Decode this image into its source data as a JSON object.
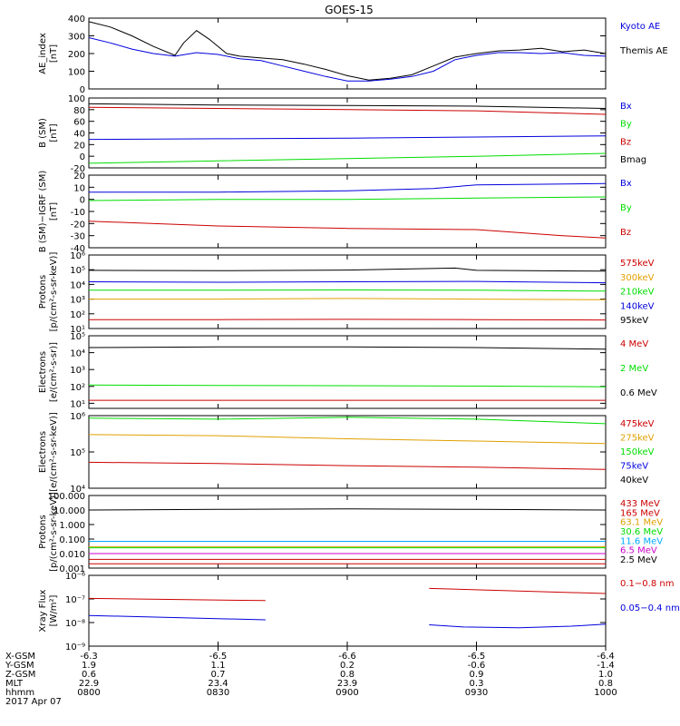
{
  "title": "GOES-15",
  "x_ticks": [
    "0800",
    "0830",
    "0900",
    "0930",
    "1000"
  ],
  "footer": {
    "row_labels": [
      "X-GSM",
      "Y-GSM",
      "Z-GSM",
      "MLT",
      "hhmm",
      "2017 Apr 07"
    ],
    "rows": [
      [
        "-6.3",
        "-6.5",
        "-6.6",
        "-6.5",
        "-6.4"
      ],
      [
        "1.9",
        "1.1",
        "0.2",
        "-0.6",
        "-1.4"
      ],
      [
        "0.6",
        "0.7",
        "0.8",
        "0.9",
        "1.0"
      ],
      [
        "22.9",
        "23.4",
        "23.9",
        "0.3",
        "0.8"
      ],
      [
        "0800",
        "0830",
        "0900",
        "0930",
        "1000"
      ]
    ]
  },
  "colors": {
    "black": "#000000",
    "blue": "#0000dd",
    "green": "#00dd00",
    "red": "#cc0000",
    "orange": "#e0a000",
    "cyan": "#00aaff",
    "magenta": "#cc00cc"
  },
  "chart_data": [
    {
      "type": "line",
      "ylabel": [
        "AE_index",
        "[nT]"
      ],
      "ylim": [
        0,
        400
      ],
      "scale": "linear",
      "yticks": [
        [
          "0",
          "0"
        ],
        [
          "100",
          "100"
        ],
        [
          "200",
          "200"
        ],
        [
          "300",
          "300"
        ],
        [
          "400",
          "400"
        ]
      ],
      "series": [
        {
          "name": "Kyoto AE",
          "color": "blue",
          "x": [
            0,
            5,
            10,
            15,
            20,
            25,
            30,
            35,
            40,
            45,
            50,
            55,
            60,
            65,
            70,
            75,
            80,
            85,
            90,
            95,
            100,
            105,
            110,
            115,
            120
          ],
          "y": [
            290,
            260,
            225,
            200,
            185,
            205,
            195,
            170,
            160,
            130,
            100,
            70,
            45,
            45,
            55,
            70,
            100,
            165,
            190,
            205,
            205,
            200,
            205,
            190,
            185
          ]
        },
        {
          "name": "Themis AE",
          "color": "black",
          "x": [
            0,
            5,
            10,
            15,
            20,
            22,
            25,
            28,
            32,
            35,
            40,
            45,
            50,
            55,
            60,
            65,
            70,
            75,
            80,
            85,
            90,
            95,
            100,
            105,
            110,
            115,
            120
          ],
          "y": [
            380,
            350,
            300,
            240,
            190,
            260,
            330,
            280,
            200,
            185,
            175,
            165,
            140,
            110,
            75,
            50,
            60,
            80,
            130,
            180,
            200,
            215,
            220,
            230,
            210,
            220,
            200
          ]
        }
      ]
    },
    {
      "type": "line",
      "ylabel": [
        "B (SM)",
        "[nT]"
      ],
      "ylim": [
        -20,
        100
      ],
      "scale": "linear",
      "yticks": [
        [
          "-20",
          "-20"
        ],
        [
          "0",
          "0"
        ],
        [
          "20",
          "20"
        ],
        [
          "40",
          "40"
        ],
        [
          "60",
          "60"
        ],
        [
          "80",
          "80"
        ],
        [
          "100",
          "100"
        ]
      ],
      "series": [
        {
          "name": "Bx",
          "color": "blue",
          "x": [
            0,
            30,
            60,
            90,
            120
          ],
          "y": [
            29,
            30,
            31,
            33,
            35
          ]
        },
        {
          "name": "By",
          "color": "green",
          "x": [
            0,
            30,
            60,
            90,
            120
          ],
          "y": [
            -12,
            -8,
            -4,
            0,
            5
          ]
        },
        {
          "name": "Bz",
          "color": "red",
          "x": [
            0,
            30,
            60,
            90,
            120
          ],
          "y": [
            84,
            82,
            80,
            78,
            72
          ]
        },
        {
          "name": "Bmag",
          "color": "black",
          "x": [
            0,
            30,
            60,
            90,
            120
          ],
          "y": [
            90,
            88,
            87,
            86,
            82
          ]
        }
      ]
    },
    {
      "type": "line",
      "ylabel": [
        "B (SM)−IGRF (SM)",
        "[nT]"
      ],
      "ylim": [
        -40,
        20
      ],
      "scale": "linear",
      "yticks": [
        [
          "-40",
          "-40"
        ],
        [
          "-30",
          "-30"
        ],
        [
          "-20",
          "-20"
        ],
        [
          "-10",
          "-10"
        ],
        [
          "0",
          "0"
        ],
        [
          "10",
          "10"
        ],
        [
          "20",
          "20"
        ]
      ],
      "series": [
        {
          "name": "Bx",
          "color": "blue",
          "x": [
            0,
            30,
            60,
            80,
            90,
            120
          ],
          "y": [
            6,
            6,
            7,
            9,
            12,
            13
          ]
        },
        {
          "name": "By",
          "color": "green",
          "x": [
            0,
            30,
            60,
            90,
            120
          ],
          "y": [
            -1,
            0,
            0,
            1,
            2
          ]
        },
        {
          "name": "Bz",
          "color": "red",
          "x": [
            0,
            30,
            60,
            90,
            110,
            120
          ],
          "y": [
            -18,
            -22,
            -24,
            -25,
            -30,
            -32
          ]
        }
      ]
    },
    {
      "type": "line",
      "ylabel": [
        "Protons",
        "[p/(cm²-s-sr-keV)]"
      ],
      "ylim": [
        10,
        1000000
      ],
      "scale": "log",
      "yticks": [
        [
          "10¹",
          10
        ],
        [
          "10²",
          100
        ],
        [
          "10³",
          1000
        ],
        [
          "10⁴",
          10000
        ],
        [
          "10⁵",
          100000
        ],
        [
          "10⁶",
          1000000
        ]
      ],
      "series": [
        {
          "name": "575keV",
          "color": "red",
          "x": [
            0,
            30,
            60,
            90,
            120
          ],
          "y": [
            40,
            40,
            42,
            40,
            38
          ]
        },
        {
          "name": "300keV",
          "color": "orange",
          "x": [
            0,
            30,
            60,
            90,
            120
          ],
          "y": [
            1000,
            1000,
            1100,
            1000,
            900
          ]
        },
        {
          "name": "210keV",
          "color": "green",
          "x": [
            0,
            30,
            60,
            90,
            120
          ],
          "y": [
            4000,
            4000,
            4200,
            4000,
            3500
          ]
        },
        {
          "name": "140keV",
          "color": "blue",
          "x": [
            0,
            30,
            60,
            90,
            120
          ],
          "y": [
            15000,
            14000,
            15000,
            16000,
            13000
          ]
        },
        {
          "name": "95keV",
          "color": "black",
          "x": [
            0,
            30,
            60,
            85,
            90,
            120
          ],
          "y": [
            90000,
            85000,
            95000,
            130000,
            90000,
            80000
          ]
        }
      ]
    },
    {
      "type": "line",
      "ylabel": [
        "Electrons",
        "[e/(cm²-s-sr)]"
      ],
      "ylim": [
        5,
        100000
      ],
      "scale": "log",
      "yticks": [
        [
          "10¹",
          10
        ],
        [
          "10²",
          100
        ],
        [
          "10³",
          1000
        ],
        [
          "10⁴",
          10000
        ],
        [
          "10⁵",
          100000
        ]
      ],
      "series": [
        {
          "name": "4 MeV",
          "color": "red",
          "x": [
            0,
            30,
            60,
            90,
            120
          ],
          "y": [
            15,
            15,
            15,
            15,
            15
          ]
        },
        {
          "name": "2 MeV",
          "color": "green",
          "x": [
            0,
            30,
            60,
            90,
            120
          ],
          "y": [
            120,
            115,
            110,
            105,
            95
          ]
        },
        {
          "name": "0.6 MeV",
          "color": "black",
          "x": [
            0,
            30,
            60,
            90,
            120
          ],
          "y": [
            20000,
            22000,
            22000,
            20000,
            16000
          ]
        }
      ]
    },
    {
      "type": "line",
      "ylabel": [
        "Electrons",
        "[e/(cm²-s-sr-keV)]"
      ],
      "ylim": [
        10000,
        1000000
      ],
      "scale": "log",
      "yticks": [
        [
          "10⁴",
          10000
        ],
        [
          "10⁵",
          100000
        ],
        [
          "10⁶",
          1000000
        ]
      ],
      "series": [
        {
          "name": "475keV",
          "color": "red",
          "x": [
            0,
            30,
            60,
            90,
            120
          ],
          "y": [
            52000,
            48000,
            42000,
            38000,
            33000
          ]
        },
        {
          "name": "275keV",
          "color": "orange",
          "x": [
            0,
            30,
            60,
            90,
            120
          ],
          "y": [
            300000,
            280000,
            230000,
            200000,
            170000
          ]
        },
        {
          "name": "150keV",
          "color": "green",
          "x": [
            0,
            30,
            60,
            90,
            120
          ],
          "y": [
            850000,
            800000,
            900000,
            800000,
            600000
          ]
        },
        {
          "name": "75keV",
          "color": "blue",
          "x": [],
          "y": []
        },
        {
          "name": "40keV",
          "color": "black",
          "x": [],
          "y": []
        }
      ]
    },
    {
      "type": "line",
      "ylabel": [
        "Protons",
        "[p/(cm²-s-sr-keV)]"
      ],
      "ylim": [
        0.001,
        100
      ],
      "scale": "log",
      "yticks": [
        [
          "0.001",
          0.001
        ],
        [
          "0.010",
          0.01
        ],
        [
          "0.100",
          0.1
        ],
        [
          "1.000",
          1
        ],
        [
          "10.000",
          10
        ],
        [
          "100.000",
          100
        ]
      ],
      "series": [
        {
          "name": "433 MeV",
          "color": "red",
          "x": [
            0,
            30,
            60,
            90,
            120
          ],
          "y": [
            0.002,
            0.002,
            0.002,
            0.002,
            0.002
          ]
        },
        {
          "name": "165 MeV",
          "color": "red",
          "x": [
            0,
            30,
            60,
            90,
            120
          ],
          "y": [
            0.004,
            0.004,
            0.004,
            0.004,
            0.004
          ]
        },
        {
          "name": "63.1 MeV",
          "color": "orange",
          "x": [
            0,
            30,
            60,
            90,
            120
          ],
          "y": [
            0.03,
            0.03,
            0.03,
            0.03,
            0.03
          ]
        },
        {
          "name": "30.6 MeV",
          "color": "green",
          "x": [
            0,
            30,
            60,
            90,
            120
          ],
          "y": [
            0.025,
            0.025,
            0.025,
            0.025,
            0.025
          ]
        },
        {
          "name": "11.6 MeV",
          "color": "cyan",
          "x": [
            0,
            30,
            60,
            90,
            120
          ],
          "y": [
            0.07,
            0.07,
            0.07,
            0.07,
            0.07
          ]
        },
        {
          "name": "6.5 MeV",
          "color": "magenta",
          "x": [
            0,
            30,
            60,
            90,
            120
          ],
          "y": [
            0.01,
            0.01,
            0.01,
            0.01,
            0.01
          ]
        },
        {
          "name": "2.5 MeV",
          "color": "black",
          "x": [
            0,
            30,
            60,
            90,
            120
          ],
          "y": [
            10,
            11,
            12,
            11,
            10
          ]
        }
      ]
    },
    {
      "type": "line",
      "ylabel": [
        "Xray Flux",
        "[W/m²]"
      ],
      "ylim": [
        1e-09,
        1e-06
      ],
      "scale": "log",
      "yticks": [
        [
          "10⁻⁹",
          1e-09
        ],
        [
          "10⁻⁸",
          1e-08
        ],
        [
          "10⁻⁷",
          1e-07
        ],
        [
          "10⁻⁶",
          1e-06
        ]
      ],
      "series": [
        {
          "name": "0.1−0.8 nm",
          "color": "red",
          "x": [
            0,
            41
          ],
          "y": [
            1.05e-07,
            8.5e-08
          ],
          "x2": [
            79,
            120
          ],
          "y2": [
            2.8e-07,
            1.7e-07
          ]
        },
        {
          "name": "0.05−0.4 nm",
          "color": "blue",
          "x": [
            0,
            41
          ],
          "y": [
            2e-08,
            1.3e-08
          ],
          "x2": [
            79,
            87,
            100,
            112,
            120
          ],
          "y2": [
            8e-09,
            6.5e-09,
            6e-09,
            7e-09,
            8.5e-09
          ]
        }
      ]
    }
  ]
}
